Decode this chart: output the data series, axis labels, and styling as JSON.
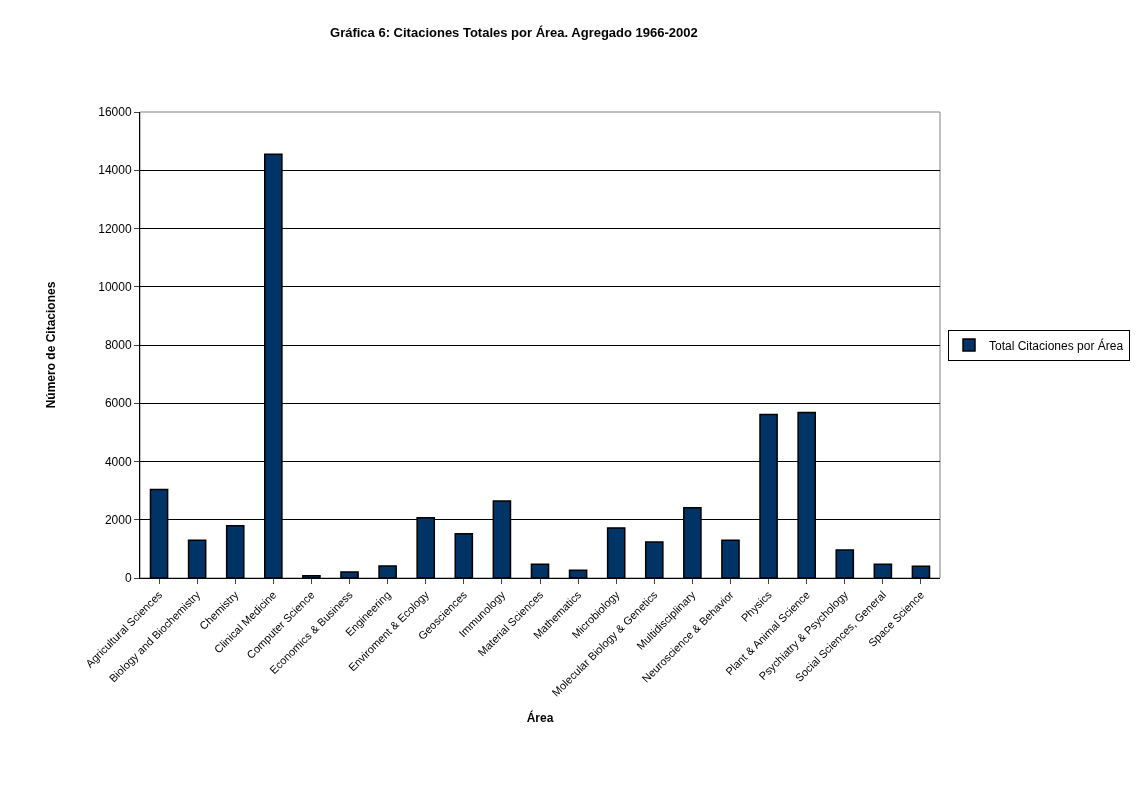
{
  "chart_data": {
    "type": "bar",
    "title": "Gráfica 6: Citaciones Totales por Área. Agregado 1966-2002",
    "xlabel": "Área",
    "ylabel": "Número de Citaciones",
    "categories": [
      "Agricultural Sciences",
      "Biology and Biochemistry",
      "Chemistry",
      "Clinical Medicine",
      "Computer Science",
      "Economics & Business",
      "Engineering",
      "Enviroment & Ecology",
      "Geosciences",
      "Immunology",
      "Material Sciences",
      "Mathematics",
      "Microbiology",
      "Molecular Biology & Genetics",
      "Multidisciplinary",
      "Neuroscience & Behavior",
      "Physics",
      "Plant & Animal Science",
      "Psychiatry & Psychology",
      "Social Sciences, General",
      "Space Science"
    ],
    "series": [
      {
        "name": "Total Citaciones por Área",
        "color": "#003366",
        "values": [
          3040,
          1300,
          1790,
          14550,
          80,
          210,
          415,
          2070,
          1520,
          2640,
          470,
          265,
          1720,
          1235,
          2410,
          1300,
          5610,
          5680,
          960,
          470,
          405
        ]
      }
    ],
    "ylim": [
      0,
      16000
    ],
    "yticks": [
      0,
      2000,
      4000,
      6000,
      8000,
      10000,
      12000,
      14000,
      16000
    ],
    "grid": "y",
    "legend": "right"
  }
}
